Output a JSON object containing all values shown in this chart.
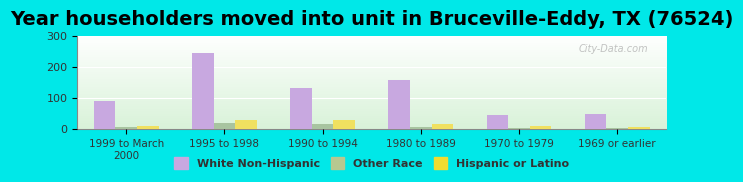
{
  "title": "Year householders moved into unit in Bruceville-Eddy, TX (76524)",
  "categories": [
    "1999 to March\n2000",
    "1995 to 1998",
    "1990 to 1994",
    "1980 to 1989",
    "1970 to 1979",
    "1969 or earlier"
  ],
  "white_non_hispanic": [
    90,
    244,
    133,
    157,
    44,
    49
  ],
  "other_race": [
    5,
    19,
    17,
    8,
    3,
    4
  ],
  "hispanic_or_latino": [
    9,
    30,
    30,
    17,
    9,
    8
  ],
  "bar_colors": {
    "white_non_hispanic": "#c8a8e0",
    "other_race": "#a8c4a0",
    "hispanic_or_latino": "#f0e060"
  },
  "legend_colors": {
    "White Non-Hispanic": "#c8a8e0",
    "Other Race": "#b8c890",
    "Hispanic or Latino": "#f0dc30"
  },
  "ylim": [
    0,
    300
  ],
  "yticks": [
    0,
    100,
    200,
    300
  ],
  "background_color": "#00e8e8",
  "plot_bg_color_top": "#ffffff",
  "plot_bg_color_bottom": "#d8f0d8",
  "title_fontsize": 14,
  "watermark": "City-Data.com"
}
